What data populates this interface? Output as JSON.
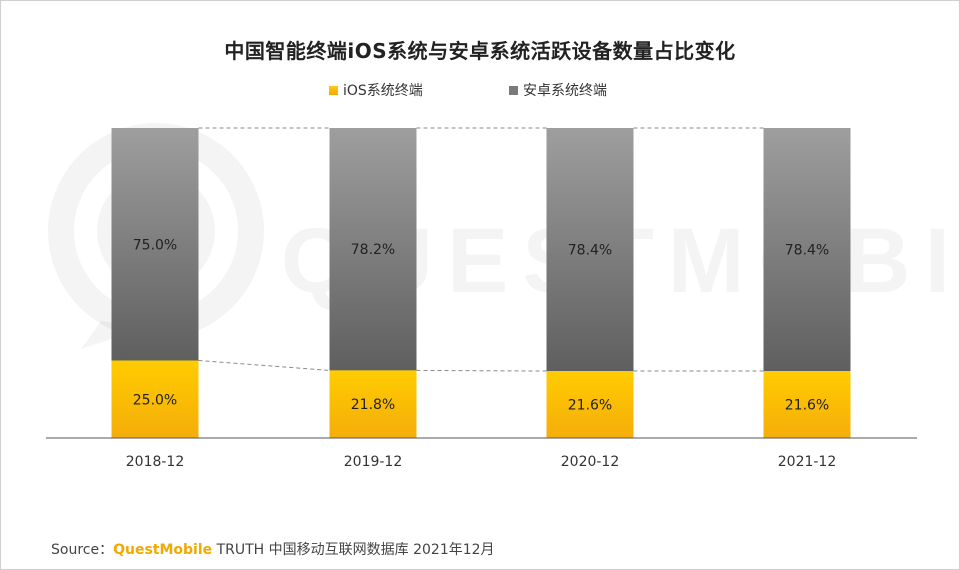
{
  "chart_data": {
    "type": "bar",
    "stacked": true,
    "title": "中国智能终端iOS系统与安卓系统活跃设备数量占比变化",
    "categories": [
      "2018-12",
      "2019-12",
      "2020-12",
      "2021-12"
    ],
    "series": [
      {
        "name": "iOS系统终端",
        "values": [
          25.0,
          21.8,
          21.6,
          21.6
        ],
        "labels": [
          "25.0%",
          "21.8%",
          "21.6%",
          "21.6%"
        ],
        "color": "#f5b800"
      },
      {
        "name": "安卓系统终端",
        "values": [
          75.0,
          78.2,
          78.4,
          78.4
        ],
        "labels": [
          "75.0%",
          "78.2%",
          "78.4%",
          "78.4%"
        ],
        "color": "#7a7a7a"
      }
    ],
    "ylim": [
      0,
      100
    ],
    "legend": "top-center",
    "grid": false,
    "connector_lines": true
  },
  "watermark": "QUESTMOBILE",
  "source": {
    "prefix": "Source：",
    "brand": "QuestMobile",
    "rest": " TRUTH 中国移动互联网数据库 2021年12月"
  }
}
